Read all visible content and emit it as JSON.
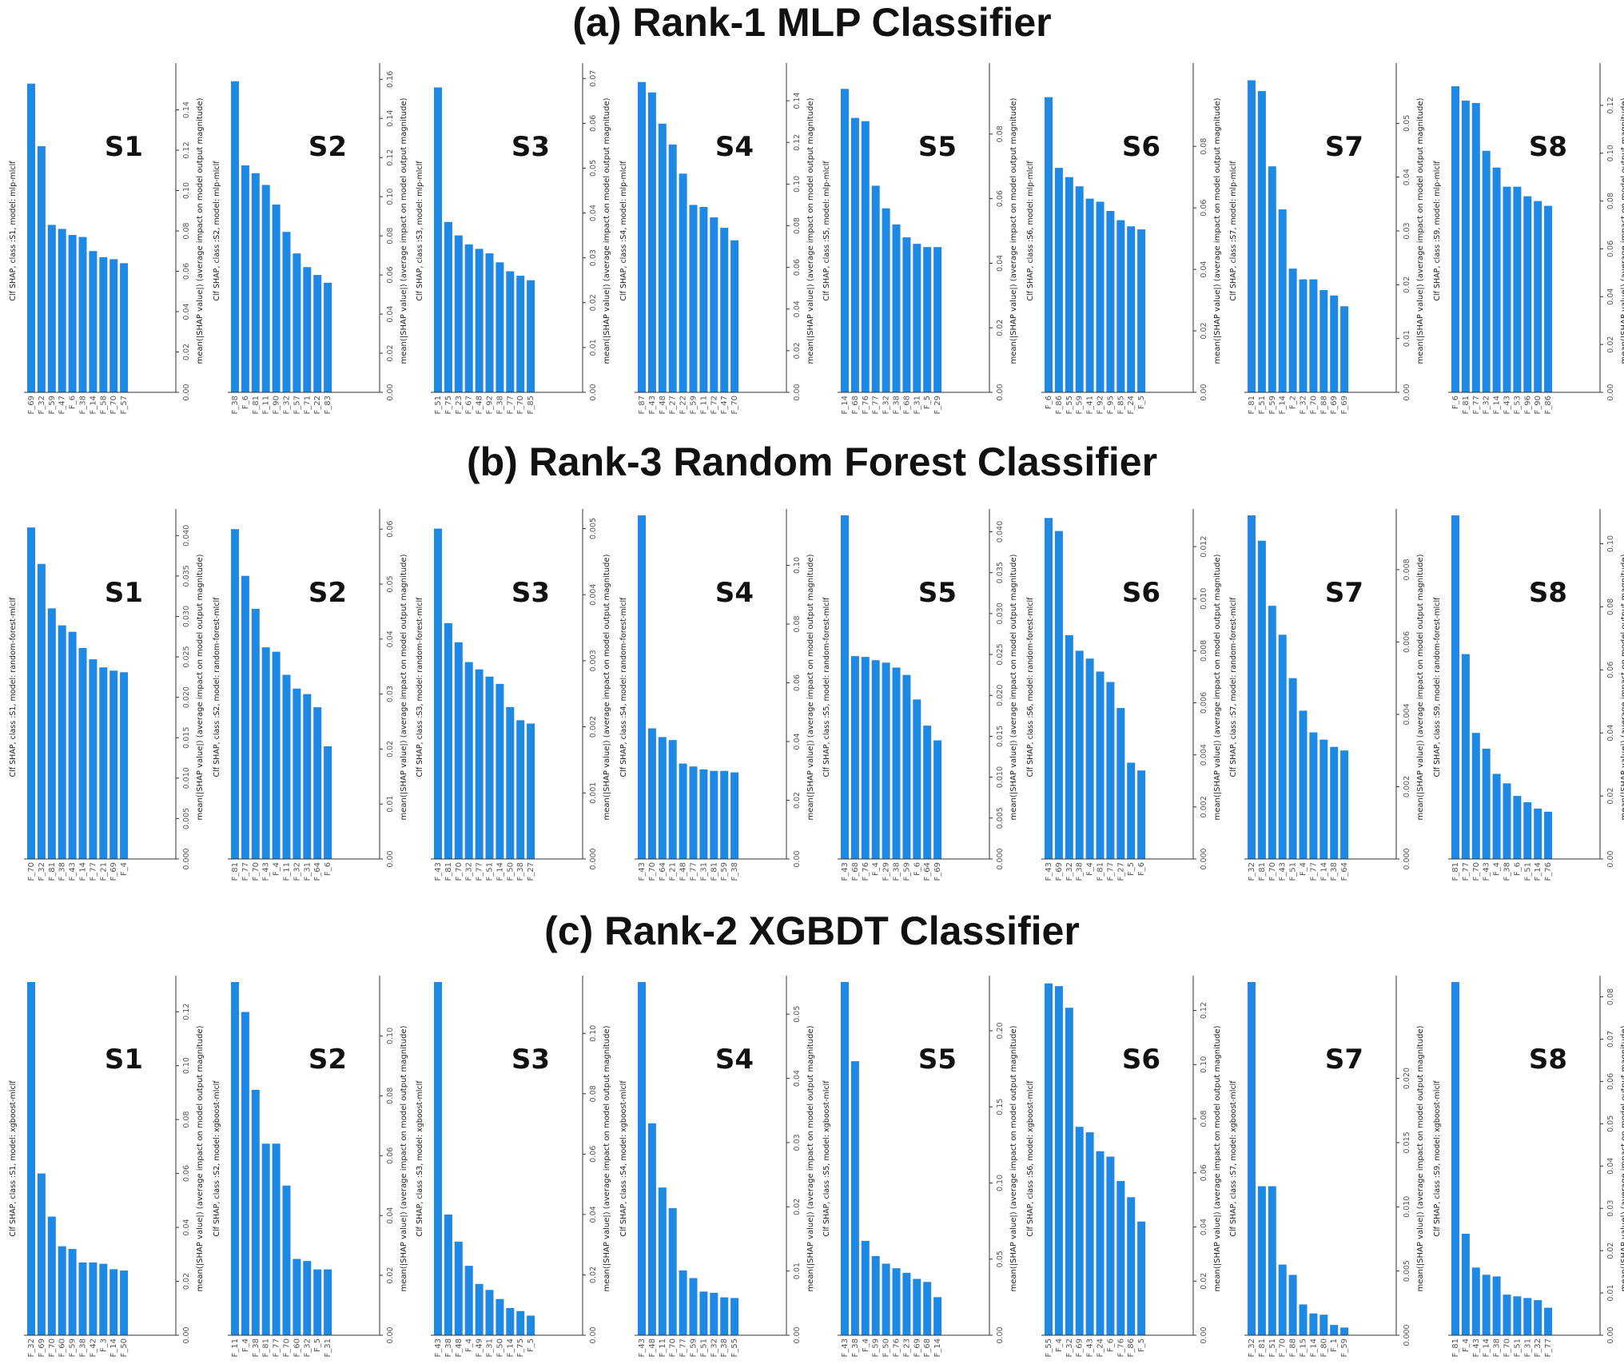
{
  "colors": {
    "bar": "#1e88e5",
    "axis": "#333333",
    "tick": "#555555",
    "label": "#222222"
  },
  "chart_data": [
    {
      "title": "(a) Rank-1 MLP Classifier",
      "type": "bar",
      "panels": [
        {
          "label": "S1",
          "ylabel": "Clf SHAP, class :S1, model: mlp-mlclf",
          "ymax": 0.16,
          "yticks": [
            0,
            0.02,
            0.04,
            0.06,
            0.08,
            0.1,
            0.12,
            0.14
          ],
          "categories": [
            "F_69",
            "F_32",
            "F_59",
            "F_47",
            "F_6",
            "F_38",
            "F_14",
            "F_58",
            "F_70",
            "F_57"
          ],
          "values": [
            0.153,
            0.122,
            0.083,
            0.081,
            0.078,
            0.077,
            0.07,
            0.067,
            0.066,
            0.064
          ]
        },
        {
          "label": "S2",
          "ylabel": "Clf SHAP, class :S2, model: mlp-mlclf",
          "ymax": 0.165,
          "yticks": [
            0,
            0.02,
            0.04,
            0.06,
            0.08,
            0.1,
            0.12,
            0.14,
            0.16
          ],
          "categories": [
            "F_38",
            "F_6",
            "F_81",
            "F_11",
            "F_90",
            "F_32",
            "F_57",
            "F_71",
            "F_22",
            "F_83"
          ],
          "values": [
            0.159,
            0.116,
            0.112,
            0.106,
            0.096,
            0.082,
            0.071,
            0.064,
            0.06,
            0.056
          ]
        },
        {
          "label": "S3",
          "ylabel": "Clf SHAP, class :S3, model: mlp-mlclf",
          "ymax": 0.072,
          "yticks": [
            0,
            0.01,
            0.02,
            0.03,
            0.04,
            0.05,
            0.06,
            0.07
          ],
          "categories": [
            "F_51",
            "F_75",
            "F_23",
            "F_67",
            "F_48",
            "F_92",
            "F_38",
            "F_77",
            "F_70",
            "F_85"
          ],
          "values": [
            0.068,
            0.038,
            0.035,
            0.033,
            0.032,
            0.031,
            0.029,
            0.027,
            0.026,
            0.025
          ]
        },
        {
          "label": "S4",
          "ylabel": "Clf SHAP, class :S4, model: mlp-mlclf",
          "ymax": 0.155,
          "yticks": [
            0,
            0.02,
            0.04,
            0.06,
            0.08,
            0.1,
            0.12,
            0.14
          ],
          "categories": [
            "F_87",
            "F_43",
            "F_48",
            "F_27",
            "F_22",
            "F_59",
            "F_11",
            "F_72",
            "F_47",
            "F_70"
          ],
          "values": [
            0.149,
            0.144,
            0.129,
            0.119,
            0.105,
            0.09,
            0.089,
            0.084,
            0.079,
            0.073
          ]
        },
        {
          "label": "S5",
          "ylabel": "Clf SHAP, class :S5, model: mlp-mlclf",
          "ymax": 0.1,
          "yticks": [
            0,
            0.02,
            0.04,
            0.06,
            0.08
          ],
          "categories": [
            "F_14",
            "F_68",
            "F_76",
            "F_77",
            "F_32",
            "F_38",
            "F_68",
            "F_31",
            "F_5",
            "F_29"
          ],
          "values": [
            0.094,
            0.085,
            0.084,
            0.064,
            0.057,
            0.052,
            0.048,
            0.046,
            0.045,
            0.045
          ]
        },
        {
          "label": "S6",
          "ylabel": "Clf SHAP, class :S6, model: mlp-mlclf",
          "ymax": 0.105,
          "yticks": [
            0,
            0.02,
            0.04,
            0.06,
            0.08
          ],
          "categories": [
            "F_6",
            "F_86",
            "F_55",
            "F_59",
            "F_41",
            "F_92",
            "F_95",
            "F_85",
            "F_24",
            "F_5"
          ],
          "values": [
            0.096,
            0.073,
            0.07,
            0.067,
            0.063,
            0.062,
            0.059,
            0.056,
            0.054,
            0.053
          ]
        },
        {
          "label": "S7",
          "ylabel": "Clf SHAP, class :S7, model: mlp-mlclf",
          "ymax": 0.06,
          "yticks": [
            0,
            0.01,
            0.02,
            0.03,
            0.04,
            0.05
          ],
          "categories": [
            "F_81",
            "F_51",
            "F_59",
            "F_14",
            "F_2",
            "F_32",
            "F_70",
            "F_88",
            "F_69",
            "F_69"
          ],
          "values": [
            0.058,
            0.056,
            0.042,
            0.034,
            0.023,
            0.021,
            0.021,
            0.019,
            0.018,
            0.016
          ]
        },
        {
          "label": "S8",
          "ylabel": "Clf SHAP, class :S9, model: mlp-mlclf",
          "ymax": 0.135,
          "yticks": [
            0,
            0.02,
            0.04,
            0.06,
            0.08,
            0.1,
            0.12
          ],
          "categories": [
            "F_6",
            "F_81",
            "F_77",
            "F_32",
            "F_14",
            "F_43",
            "F_53",
            "F_96",
            "F_90",
            "F_86"
          ],
          "values": [
            0.128,
            0.122,
            0.121,
            0.101,
            0.094,
            0.086,
            0.086,
            0.082,
            0.08,
            0.078
          ]
        }
      ]
    },
    {
      "title": "(b) Rank-3 Random Forest Classifier",
      "type": "bar",
      "panels": [
        {
          "label": "S1",
          "ylabel": "Clf SHAP, class :S1, model: random-forest-mlclf",
          "ymax": 0.0425,
          "yticks": [
            0,
            0.005,
            0.01,
            0.015,
            0.02,
            0.025,
            0.03,
            0.035,
            0.04
          ],
          "categories": [
            "F_70",
            "F_32",
            "F_81",
            "F_38",
            "F_43",
            "F_14",
            "F_77",
            "F_21",
            "F_69",
            "F_4"
          ],
          "values": [
            0.041,
            0.0365,
            0.031,
            0.0289,
            0.0281,
            0.0261,
            0.0247,
            0.0237,
            0.0233,
            0.0231
          ]
        },
        {
          "label": "S2",
          "ylabel": "Clf SHAP, class :S2, model: random-forest-mlclf",
          "ymax": 0.0625,
          "yticks": [
            0,
            0.01,
            0.02,
            0.03,
            0.04,
            0.05,
            0.06
          ],
          "categories": [
            "F_81",
            "F_77",
            "F_70",
            "F_43",
            "F_4",
            "F_11",
            "F_32",
            "F_31",
            "F_64",
            "F_6"
          ],
          "values": [
            0.06,
            0.0515,
            0.0455,
            0.0385,
            0.0377,
            0.0335,
            0.031,
            0.03,
            0.0276,
            0.0205
          ]
        },
        {
          "label": "S3",
          "ylabel": "Clf SHAP, class :S3, model: random-forest-mlclf",
          "ymax": 0.0052,
          "yticks": [
            0,
            0.001,
            0.002,
            0.003,
            0.004,
            0.005
          ],
          "categories": [
            "F_43",
            "F_81",
            "F_70",
            "F_32",
            "F_77",
            "F_51",
            "F_14",
            "F_50",
            "F_38",
            "F_27"
          ],
          "values": [
            0.005,
            0.00357,
            0.00328,
            0.00298,
            0.00287,
            0.00276,
            0.00265,
            0.0023,
            0.0021,
            0.00205
          ]
        },
        {
          "label": "S4",
          "ylabel": "Clf SHAP, class :S4, model: random-forest-mlclf",
          "ymax": 0.117,
          "yticks": [
            0,
            0.02,
            0.04,
            0.06,
            0.08,
            0.1
          ],
          "categories": [
            "F_43",
            "F_70",
            "F_64",
            "F_21",
            "F_48",
            "F_77",
            "F_31",
            "F_81",
            "F_59",
            "F_38"
          ],
          "values": [
            0.117,
            0.0445,
            0.0415,
            0.0405,
            0.0325,
            0.0315,
            0.0305,
            0.03,
            0.03,
            0.0295
          ]
        },
        {
          "label": "S5",
          "ylabel": "Clf SHAP, class :S5, model: random-forest-mlclf",
          "ymax": 0.042,
          "yticks": [
            0,
            0.005,
            0.01,
            0.015,
            0.02,
            0.025,
            0.03,
            0.035,
            0.04
          ],
          "categories": [
            "F_43",
            "F_68",
            "F_76",
            "F_4",
            "F_29",
            "F_38",
            "F_59",
            "F_6",
            "F_64",
            "F_69"
          ],
          "values": [
            0.042,
            0.0248,
            0.0247,
            0.0243,
            0.024,
            0.0234,
            0.0225,
            0.0195,
            0.0163,
            0.0145
          ]
        },
        {
          "label": "S6",
          "ylabel": "Clf SHAP, class :S6, model: random-forest-mlclf",
          "ymax": 0.0132,
          "yticks": [
            0,
            0.002,
            0.004,
            0.006,
            0.008,
            0.01,
            0.012
          ],
          "categories": [
            "F_43",
            "F_69",
            "F_32",
            "F_38",
            "F_4",
            "F_81",
            "F_77",
            "F_27",
            "F_5",
            "F_6"
          ],
          "values": [
            0.0131,
            0.0126,
            0.0086,
            0.008,
            0.0077,
            0.0072,
            0.0068,
            0.0058,
            0.0037,
            0.0034
          ]
        },
        {
          "label": "S7",
          "ylabel": "Clf SHAP, class :S7, model: random-forest-mlclf",
          "ymax": 0.0095,
          "yticks": [
            0,
            0.002,
            0.004,
            0.006,
            0.008
          ],
          "categories": [
            "F_32",
            "F_81",
            "F_70",
            "F_43",
            "F_51",
            "F_4",
            "F_77",
            "F_14",
            "F_38",
            "F_64"
          ],
          "values": [
            0.0095,
            0.0088,
            0.007,
            0.0062,
            0.005,
            0.0041,
            0.0035,
            0.0033,
            0.0031,
            0.003
          ]
        },
        {
          "label": "S8",
          "ylabel": "Clf SHAP, class :S9, model: random-forest-mlclf",
          "ymax": 0.109,
          "yticks": [
            0,
            0.02,
            0.04,
            0.06,
            0.08,
            0.1
          ],
          "categories": [
            "F_81",
            "F_77",
            "F_70",
            "F_43",
            "F_4",
            "F_38",
            "F_6",
            "F_51",
            "F_14",
            "F_76"
          ],
          "values": [
            0.109,
            0.065,
            0.04,
            0.035,
            0.027,
            0.024,
            0.02,
            0.018,
            0.016,
            0.015
          ]
        }
      ]
    },
    {
      "title": "(c) Rank-2 XGBDT Classifier",
      "type": "bar",
      "panels": [
        {
          "label": "S1",
          "ylabel": "Clf SHAP, class :S1, model: xgboost-mlclf",
          "ymax": 0.131,
          "yticks": [
            0,
            0.02,
            0.04,
            0.06,
            0.08,
            0.1,
            0.12
          ],
          "categories": [
            "F_32",
            "F_69",
            "F_70",
            "F_60",
            "F_59",
            "F_38",
            "F_42",
            "F_3",
            "F_14",
            "F_50"
          ],
          "values": [
            0.131,
            0.06,
            0.044,
            0.033,
            0.032,
            0.027,
            0.027,
            0.0265,
            0.0245,
            0.024
          ]
        },
        {
          "label": "S2",
          "ylabel": "Clf SHAP, class :S2, model: xgboost-mlclf",
          "ymax": 0.118,
          "yticks": [
            0,
            0.02,
            0.04,
            0.06,
            0.08,
            0.1
          ],
          "categories": [
            "F_11",
            "F_4",
            "F_38",
            "F_81",
            "F_77",
            "F_70",
            "F_60",
            "F_32",
            "F_5",
            "F_31"
          ],
          "values": [
            0.118,
            0.108,
            0.082,
            0.064,
            0.064,
            0.05,
            0.0255,
            0.0248,
            0.022,
            0.022
          ]
        },
        {
          "label": "S3",
          "ylabel": "Clf SHAP, class :S3, model: xgboost-mlclf",
          "ymax": 0.117,
          "yticks": [
            0,
            0.02,
            0.04,
            0.06,
            0.08,
            0.1
          ],
          "categories": [
            "F_43",
            "F_38",
            "F_48",
            "F_4",
            "F_49",
            "F_31",
            "F_50",
            "F_14",
            "F_75",
            "F_5"
          ],
          "values": [
            0.117,
            0.04,
            0.031,
            0.023,
            0.017,
            0.015,
            0.012,
            0.009,
            0.008,
            0.0065
          ]
        },
        {
          "label": "S4",
          "ylabel": "Clf SHAP, class :S4, model: xgboost-mlclf",
          "ymax": 0.055,
          "yticks": [
            0,
            0.01,
            0.02,
            0.03,
            0.04,
            0.05
          ],
          "categories": [
            "F_43",
            "F_48",
            "F_11",
            "F_70",
            "F_77",
            "F_59",
            "F_51",
            "F_32",
            "F_38",
            "F_55"
          ],
          "values": [
            0.055,
            0.033,
            0.023,
            0.0198,
            0.0101,
            0.0089,
            0.0068,
            0.0066,
            0.0059,
            0.0058
          ]
        },
        {
          "label": "S5",
          "ylabel": "Clf SHAP, class :S5, model: xgboost-mlclf",
          "ymax": 0.232,
          "yticks": [
            0,
            0.05,
            0.1,
            0.15,
            0.2
          ],
          "categories": [
            "F_43",
            "F_38",
            "F_4",
            "F_59",
            "F_50",
            "F_76",
            "F_23",
            "F_69",
            "F_68",
            "F_14"
          ],
          "values": [
            0.232,
            0.18,
            0.062,
            0.052,
            0.047,
            0.044,
            0.041,
            0.037,
            0.035,
            0.025
          ]
        },
        {
          "label": "S6",
          "ylabel": "Clf SHAP, class :S6, model: xgboost-mlclf",
          "ymax": 0.1305,
          "yticks": [
            0,
            0.02,
            0.04,
            0.06,
            0.08,
            0.1,
            0.12
          ],
          "categories": [
            "F_55",
            "F_4",
            "F_32",
            "F_69",
            "F_43",
            "F_24",
            "F_6",
            "F_76",
            "F_86",
            "F_5"
          ],
          "values": [
            0.13,
            0.129,
            0.121,
            0.077,
            0.075,
            0.068,
            0.066,
            0.057,
            0.051,
            0.042
          ]
        },
        {
          "label": "S7",
          "ylabel": "Clf SHAP, class :S7, model: xgboost-mlclf",
          "ymax": 0.0275,
          "yticks": [
            0,
            0.005,
            0.01,
            0.015,
            0.02
          ],
          "categories": [
            "F_32",
            "F_81",
            "F_51",
            "F_70",
            "F_88",
            "F_15",
            "F_14",
            "F_80",
            "F_1",
            "F_59"
          ],
          "values": [
            0.0275,
            0.0116,
            0.0116,
            0.0055,
            0.0047,
            0.0024,
            0.0017,
            0.0016,
            0.0008,
            0.0006
          ]
        },
        {
          "label": "S8",
          "ylabel": "Clf SHAP, class :S9, model: xgboost-mlclf",
          "ymax": 0.0835,
          "yticks": [
            0,
            0.01,
            0.02,
            0.03,
            0.04,
            0.05,
            0.06,
            0.07,
            0.08
          ],
          "categories": [
            "F_81",
            "F_4",
            "F_43",
            "F_14",
            "F_38",
            "F_70",
            "F_51",
            "F_31",
            "F_32",
            "F_77"
          ],
          "values": [
            0.0835,
            0.024,
            0.016,
            0.0143,
            0.0139,
            0.0096,
            0.0092,
            0.0088,
            0.0083,
            0.0065
          ]
        }
      ]
    }
  ],
  "right_axis_label": "mean(|SHAP value|) (average impact on model output magnitude)"
}
